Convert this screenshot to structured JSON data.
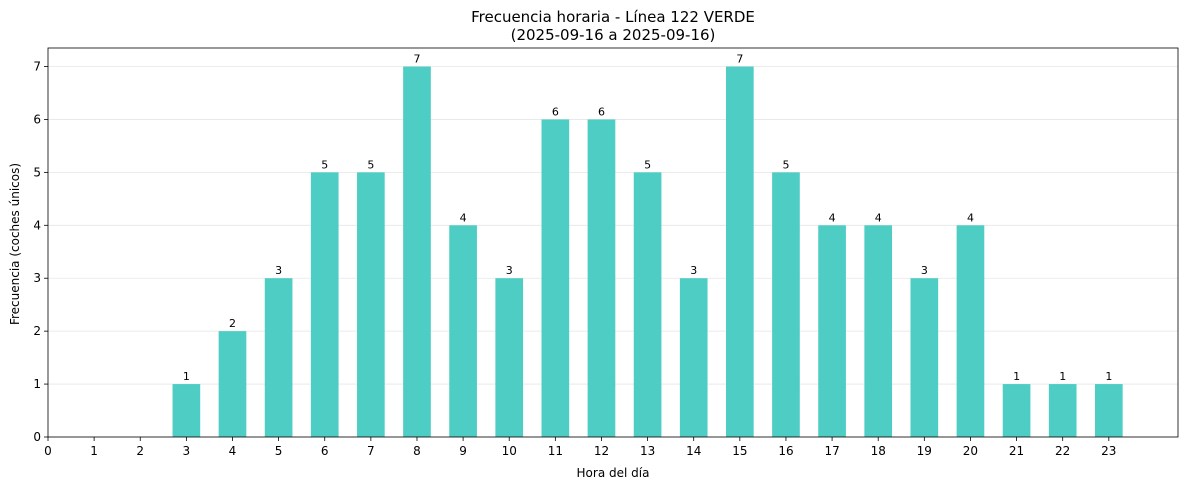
{
  "chart_data": {
    "type": "bar",
    "title": "Frecuencia horaria - Línea 122 VERDE",
    "subtitle": "(2025-09-16 a 2025-09-16)",
    "xlabel": "Hora del día",
    "ylabel": "Frecuencia (coches únicos)",
    "categories": [
      "0",
      "1",
      "2",
      "3",
      "4",
      "5",
      "6",
      "7",
      "8",
      "9",
      "10",
      "11",
      "12",
      "13",
      "14",
      "15",
      "16",
      "17",
      "18",
      "19",
      "20",
      "21",
      "22",
      "23"
    ],
    "values": [
      0,
      0,
      0,
      1,
      2,
      3,
      5,
      5,
      7,
      4,
      3,
      6,
      6,
      5,
      3,
      7,
      5,
      4,
      4,
      3,
      4,
      1,
      1,
      1
    ],
    "data_labels": [
      "",
      "",
      "",
      "1",
      "2",
      "3",
      "5",
      "5",
      "7",
      "4",
      "3",
      "6",
      "6",
      "5",
      "3",
      "7",
      "5",
      "4",
      "4",
      "3",
      "4",
      "1",
      "1",
      "1"
    ],
    "ylim": [
      0,
      7.35
    ],
    "yticks": [
      "0",
      "1",
      "2",
      "3",
      "4",
      "5",
      "6",
      "7"
    ],
    "grid": "y",
    "bar_color": "#4ecdc4",
    "grid_color": "#e6e6e6"
  }
}
